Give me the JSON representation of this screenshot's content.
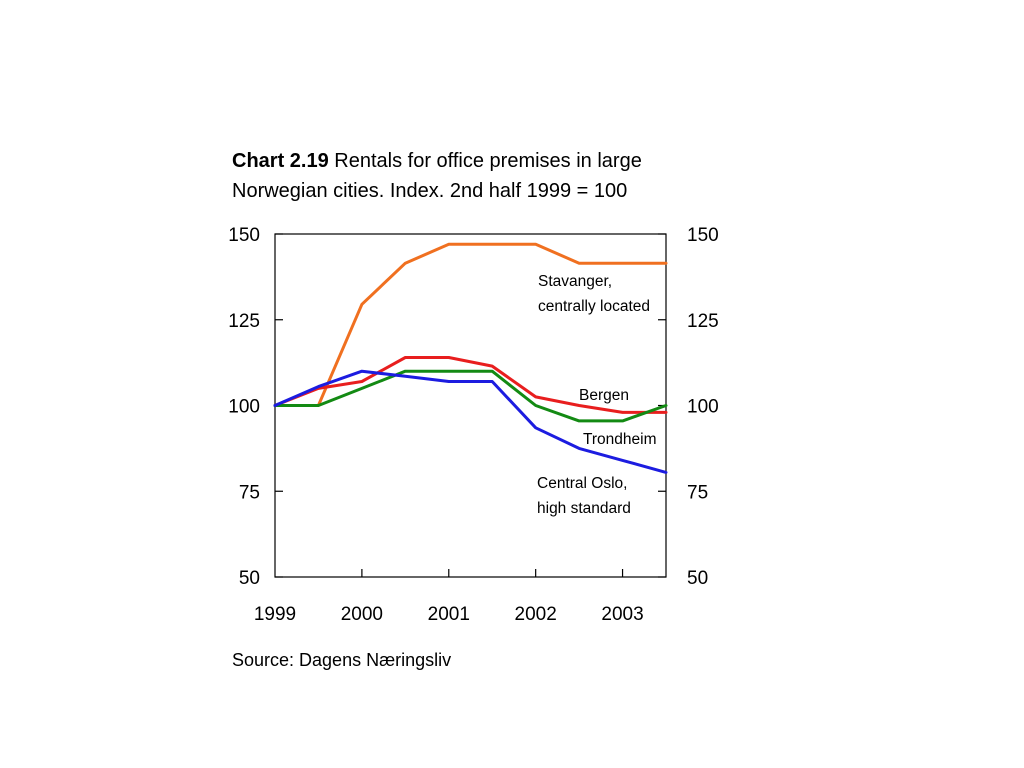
{
  "title": {
    "bold": "Chart 2.19",
    "line1_rest": " Rentals for office premises in large",
    "line2": "Norwegian cities. Index. 2nd half 1999 = 100"
  },
  "source": "Source: Dagens Næringsliv",
  "chart_data": {
    "type": "line",
    "x": [
      1999.0,
      1999.5,
      2000.0,
      2000.5,
      2001.0,
      2001.5,
      2002.0,
      2002.5,
      2003.0,
      2003.5
    ],
    "xticks": [
      "1999",
      "2000",
      "2001",
      "2002",
      "2003"
    ],
    "xlim": [
      1999.0,
      2003.5
    ],
    "ylim": [
      50,
      150
    ],
    "yticks_left": [
      "50",
      "75",
      "100",
      "125",
      "150"
    ],
    "yticks_right": [
      "50",
      "75",
      "100",
      "125",
      "150"
    ],
    "series": [
      {
        "name": "Stavanger, centrally located",
        "label_lines": [
          "Stavanger,",
          "centrally located"
        ],
        "color": "#f07020",
        "values": [
          100,
          100,
          129.5,
          141.5,
          147,
          147,
          147,
          141.5,
          141.5,
          141.5
        ]
      },
      {
        "name": "Bergen",
        "label_lines": [
          "Bergen"
        ],
        "color": "#e81e1e",
        "values": [
          100,
          105,
          107,
          114,
          114,
          111.5,
          102.5,
          100,
          98,
          98
        ]
      },
      {
        "name": "Trondheim",
        "label_lines": [
          "Trondheim"
        ],
        "color": "#138a13",
        "values": [
          100,
          100,
          105,
          110,
          110,
          110,
          100,
          95.5,
          95.5,
          100
        ]
      },
      {
        "name": "Central Oslo, high standard",
        "label_lines": [
          "Central Oslo,",
          "high standard"
        ],
        "color": "#1c1ce0",
        "values": [
          100,
          105.5,
          110,
          108.5,
          107,
          107,
          93.5,
          87.5,
          84,
          80.5
        ]
      }
    ],
    "grid": false,
    "legend": "inline labels"
  }
}
